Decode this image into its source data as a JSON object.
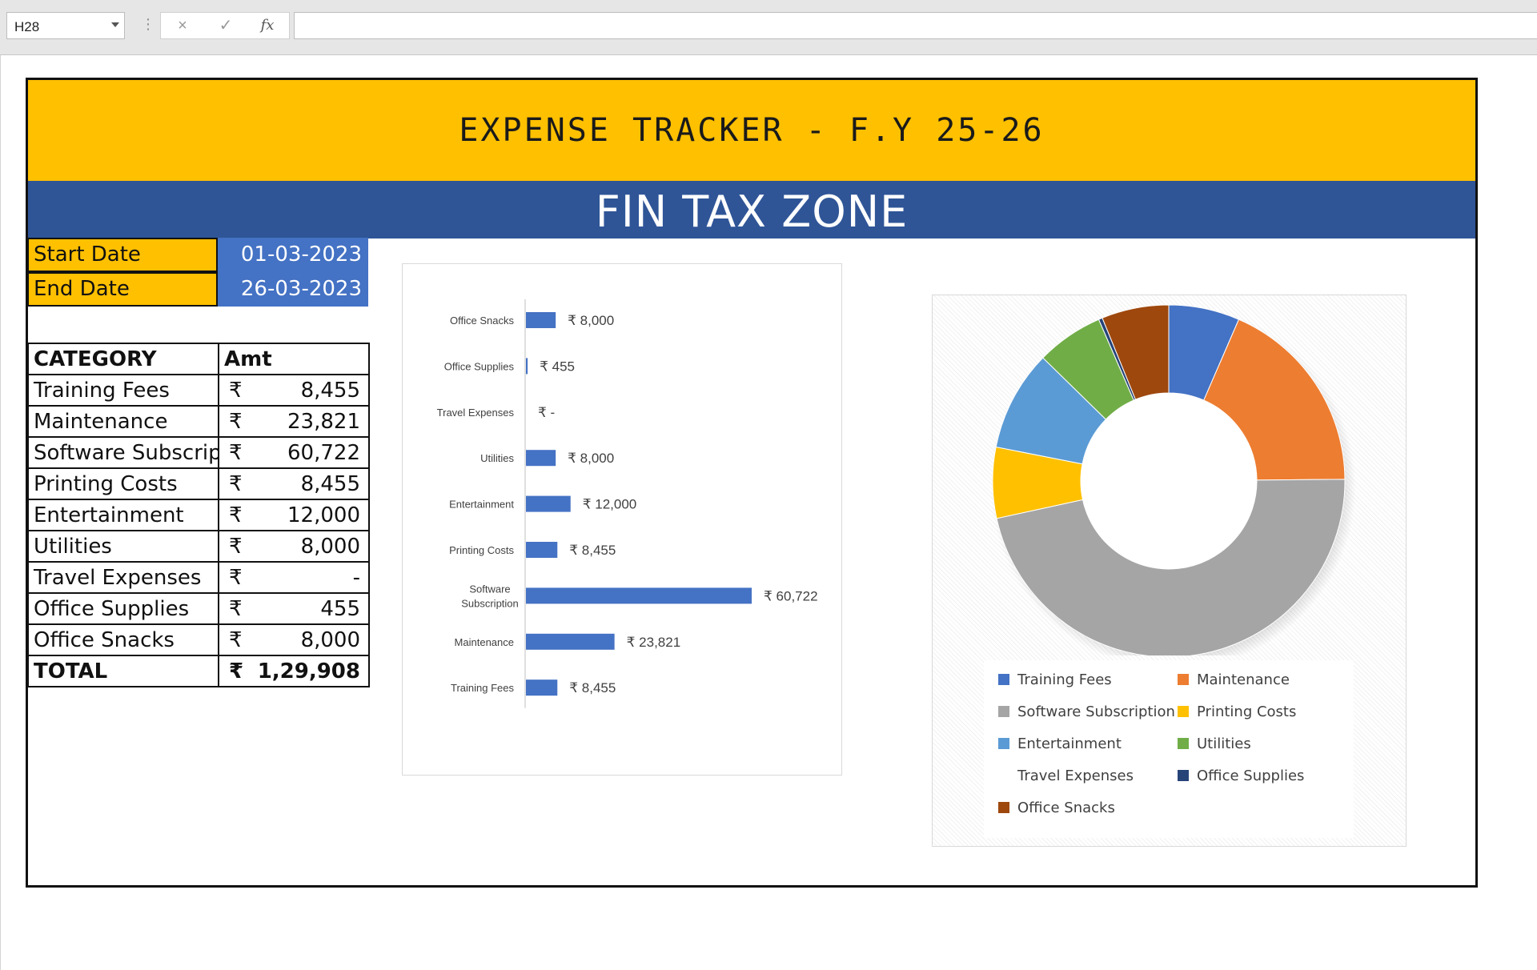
{
  "formula_bar": {
    "name_box": "H28",
    "cancel_icon": "×",
    "enter_icon": "✓",
    "function_icon": "fx",
    "formula": ""
  },
  "dashboard": {
    "title": "EXPENSE TRACKER - F.Y 25-26",
    "subtitle": "FIN TAX ZONE",
    "start_date_label": "Start Date",
    "start_date": "01-03-2023",
    "end_date_label": "End Date",
    "end_date": "26-03-2023"
  },
  "table": {
    "header": {
      "category": "CATEGORY",
      "amount": "Amt"
    },
    "currency": "₹",
    "rows": [
      {
        "category": "Training Fees",
        "amount": "8,455"
      },
      {
        "category": "Maintenance",
        "amount": "23,821"
      },
      {
        "category": "Software Subscription",
        "amount": "60,722"
      },
      {
        "category": "Printing Costs",
        "amount": "8,455"
      },
      {
        "category": "Entertainment",
        "amount": "12,000"
      },
      {
        "category": "Utilities",
        "amount": "8,000"
      },
      {
        "category": "Travel Expenses",
        "amount": "-"
      },
      {
        "category": "Office Supplies",
        "amount": "455"
      },
      {
        "category": "Office Snacks",
        "amount": "8,000"
      }
    ],
    "total": {
      "label": "TOTAL",
      "amount": "1,29,908"
    }
  },
  "chart_data": [
    {
      "type": "bar",
      "orientation": "horizontal",
      "title": "",
      "categories": [
        "Office Snacks",
        "Office Supplies",
        "Travel Expenses",
        "Utilities",
        "Entertainment",
        "Printing Costs",
        "Software Subscription",
        "Maintenance",
        "Training Fees"
      ],
      "values": [
        8000,
        455,
        0,
        8000,
        12000,
        8455,
        60722,
        23821,
        8455
      ],
      "data_labels": [
        "₹ 8,000",
        "₹ 455",
        "₹ -",
        "₹ 8,000",
        "₹ 12,000",
        "₹ 8,455",
        "₹ 60,722",
        "₹ 23,821",
        "₹ 8,455"
      ],
      "color": "#4472c4",
      "grid": false
    },
    {
      "type": "pie",
      "variant": "donut",
      "title": "",
      "categories": [
        "Training Fees",
        "Maintenance",
        "Software Subscription",
        "Printing Costs",
        "Entertainment",
        "Utilities",
        "Travel Expenses",
        "Office Supplies",
        "Office Snacks"
      ],
      "values": [
        8455,
        23821,
        60722,
        8455,
        12000,
        8000,
        0,
        455,
        8000
      ],
      "colors": [
        "#4472c4",
        "#ed7d31",
        "#a5a5a5",
        "#ffc000",
        "#5b9bd5",
        "#70ad47",
        "#264478",
        "#264478",
        "#9e480e"
      ],
      "legend_position": "bottom"
    }
  ]
}
